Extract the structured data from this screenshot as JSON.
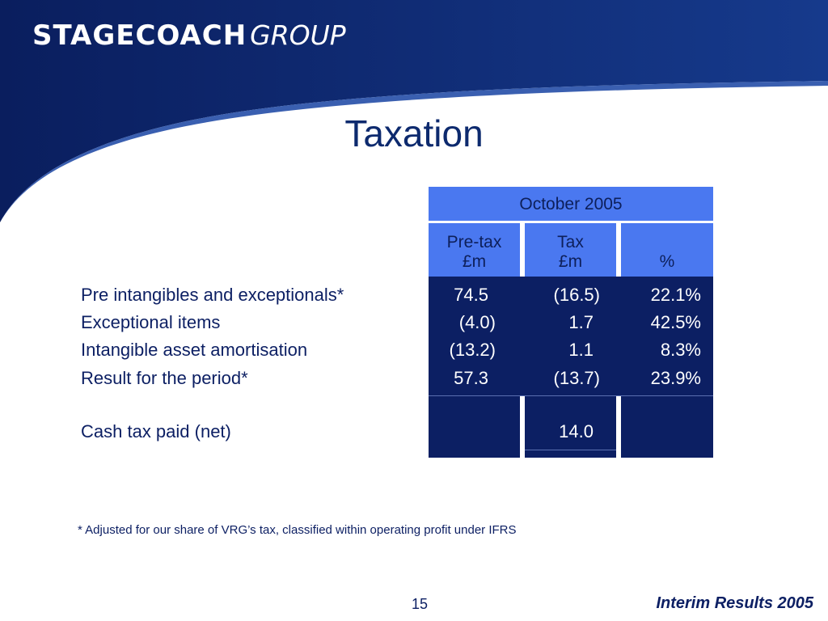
{
  "logo": {
    "main": "STAGECOACH",
    "sub": "GROUP"
  },
  "title": "Taxation",
  "table": {
    "period_header": "October 2005",
    "columns": [
      {
        "line1": "Pre-tax",
        "line2": "£m"
      },
      {
        "line1": "Tax",
        "line2": "£m"
      },
      {
        "line1": "",
        "line2": "%"
      }
    ],
    "rows": [
      {
        "label": "Pre intangibles and exceptionals*",
        "pretax": "74.5",
        "tax": "(16.5)",
        "pct": "22.1%"
      },
      {
        "label": "Exceptional items",
        "pretax": "(4.0)",
        "tax": "1.7",
        "pct": "42.5%"
      },
      {
        "label": "Intangible asset amortisation",
        "pretax": "(13.2)",
        "tax": "1.1",
        "pct": "8.3%"
      },
      {
        "label": "Result for the period*",
        "pretax": "57.3",
        "tax": "(13.7)",
        "pct": "23.9%"
      }
    ],
    "cash_row": {
      "label": "Cash tax paid (net)",
      "tax": "14.0"
    }
  },
  "footnote": "* Adjusted for our share of VRG’s tax, classified within operating profit under IFRS",
  "page_number": "15",
  "footer": "Interim Results 2005",
  "colors": {
    "navy": "#0c1f63",
    "header_blue": "#4a78f0",
    "title": "#0d2a6e"
  }
}
